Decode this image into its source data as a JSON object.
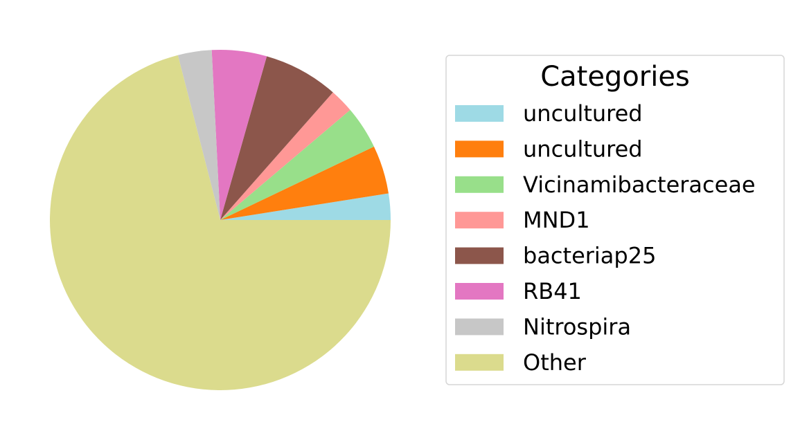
{
  "chart_data": {
    "type": "pie",
    "start_angle_deg": 0,
    "direction": "counterclockwise",
    "slices": [
      {
        "label": "uncultured",
        "value": 2.5,
        "color": "#9edae5"
      },
      {
        "label": "uncultured",
        "value": 4.6,
        "color": "#ff7f0e"
      },
      {
        "label": "Vicinamibacteraceae",
        "value": 4.1,
        "color": "#98df8a"
      },
      {
        "label": "MND1",
        "value": 2.3,
        "color": "#ff9896"
      },
      {
        "label": "bacteriap25",
        "value": 7.1,
        "color": "#8c564b"
      },
      {
        "label": "RB41",
        "value": 5.2,
        "color": "#e377c2"
      },
      {
        "label": "Nitrospira",
        "value": 3.2,
        "color": "#c7c7c7"
      },
      {
        "label": "Other",
        "value": 71.0,
        "color": "#dbdb8d"
      }
    ],
    "legend": {
      "title": "Categories",
      "placement": "right"
    }
  }
}
